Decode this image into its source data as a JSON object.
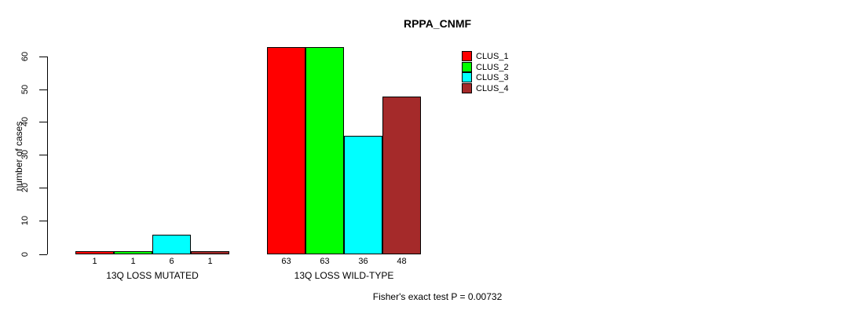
{
  "chart_data": {
    "type": "bar",
    "title": "RPPA_CNMF",
    "ylabel": "number of cases",
    "xlabel": "",
    "yticks": [
      0,
      10,
      20,
      30,
      40,
      50,
      60
    ],
    "ylim": [
      0,
      63
    ],
    "grid": false,
    "legend_position": "top-right",
    "categories": [
      "13Q LOSS MUTATED",
      "13Q LOSS WILD-TYPE"
    ],
    "series": [
      {
        "name": "CLUS_1",
        "color": "#FF0000",
        "values": [
          1,
          63
        ]
      },
      {
        "name": "CLUS_2",
        "color": "#00FF00",
        "values": [
          1,
          63
        ]
      },
      {
        "name": "CLUS_3",
        "color": "#00FFFF",
        "values": [
          6,
          36
        ]
      },
      {
        "name": "CLUS_4",
        "color": "#A52A2A",
        "values": [
          1,
          48
        ]
      }
    ],
    "bar_value_labels": [
      [
        1,
        1,
        6,
        1
      ],
      [
        63,
        63,
        36,
        48
      ]
    ],
    "footer": "Fisher's exact test P = 0.00732",
    "colors": {
      "background": "#FFFFFF",
      "axis": "#000000",
      "text": "#000000"
    }
  }
}
